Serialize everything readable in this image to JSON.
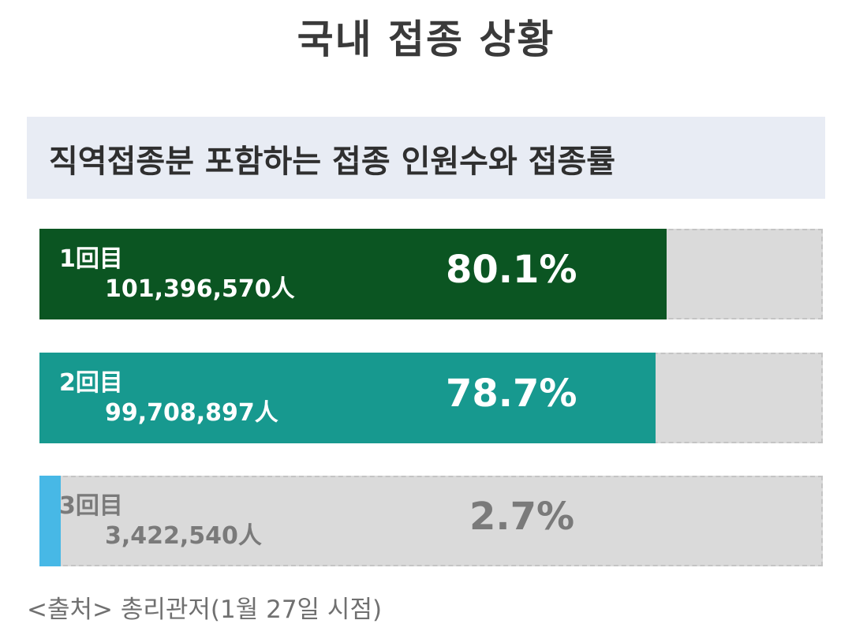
{
  "title": "국내 접종 상황",
  "subtitle": "직역접종분 포함하는 접종 인원수와 접종률",
  "source": "<출처> 총리관저(1월 27일 시점)",
  "chart_data": {
    "type": "bar",
    "orientation": "horizontal",
    "xlim": [
      0,
      100
    ],
    "categories": [
      "1回目",
      "2回目",
      "3回目"
    ],
    "counts": [
      "101,396,570人",
      "99,708,897人",
      "3,422,540人"
    ],
    "value_labels": [
      "80.1%",
      "78.7%",
      "2.7%"
    ],
    "values": [
      80.1,
      78.7,
      2.7
    ],
    "colors": [
      "#0b5522",
      "#17998f",
      "#47b8e6"
    ],
    "label_colors": [
      "#ffffff",
      "#ffffff",
      "#7a7a7a"
    ]
  }
}
